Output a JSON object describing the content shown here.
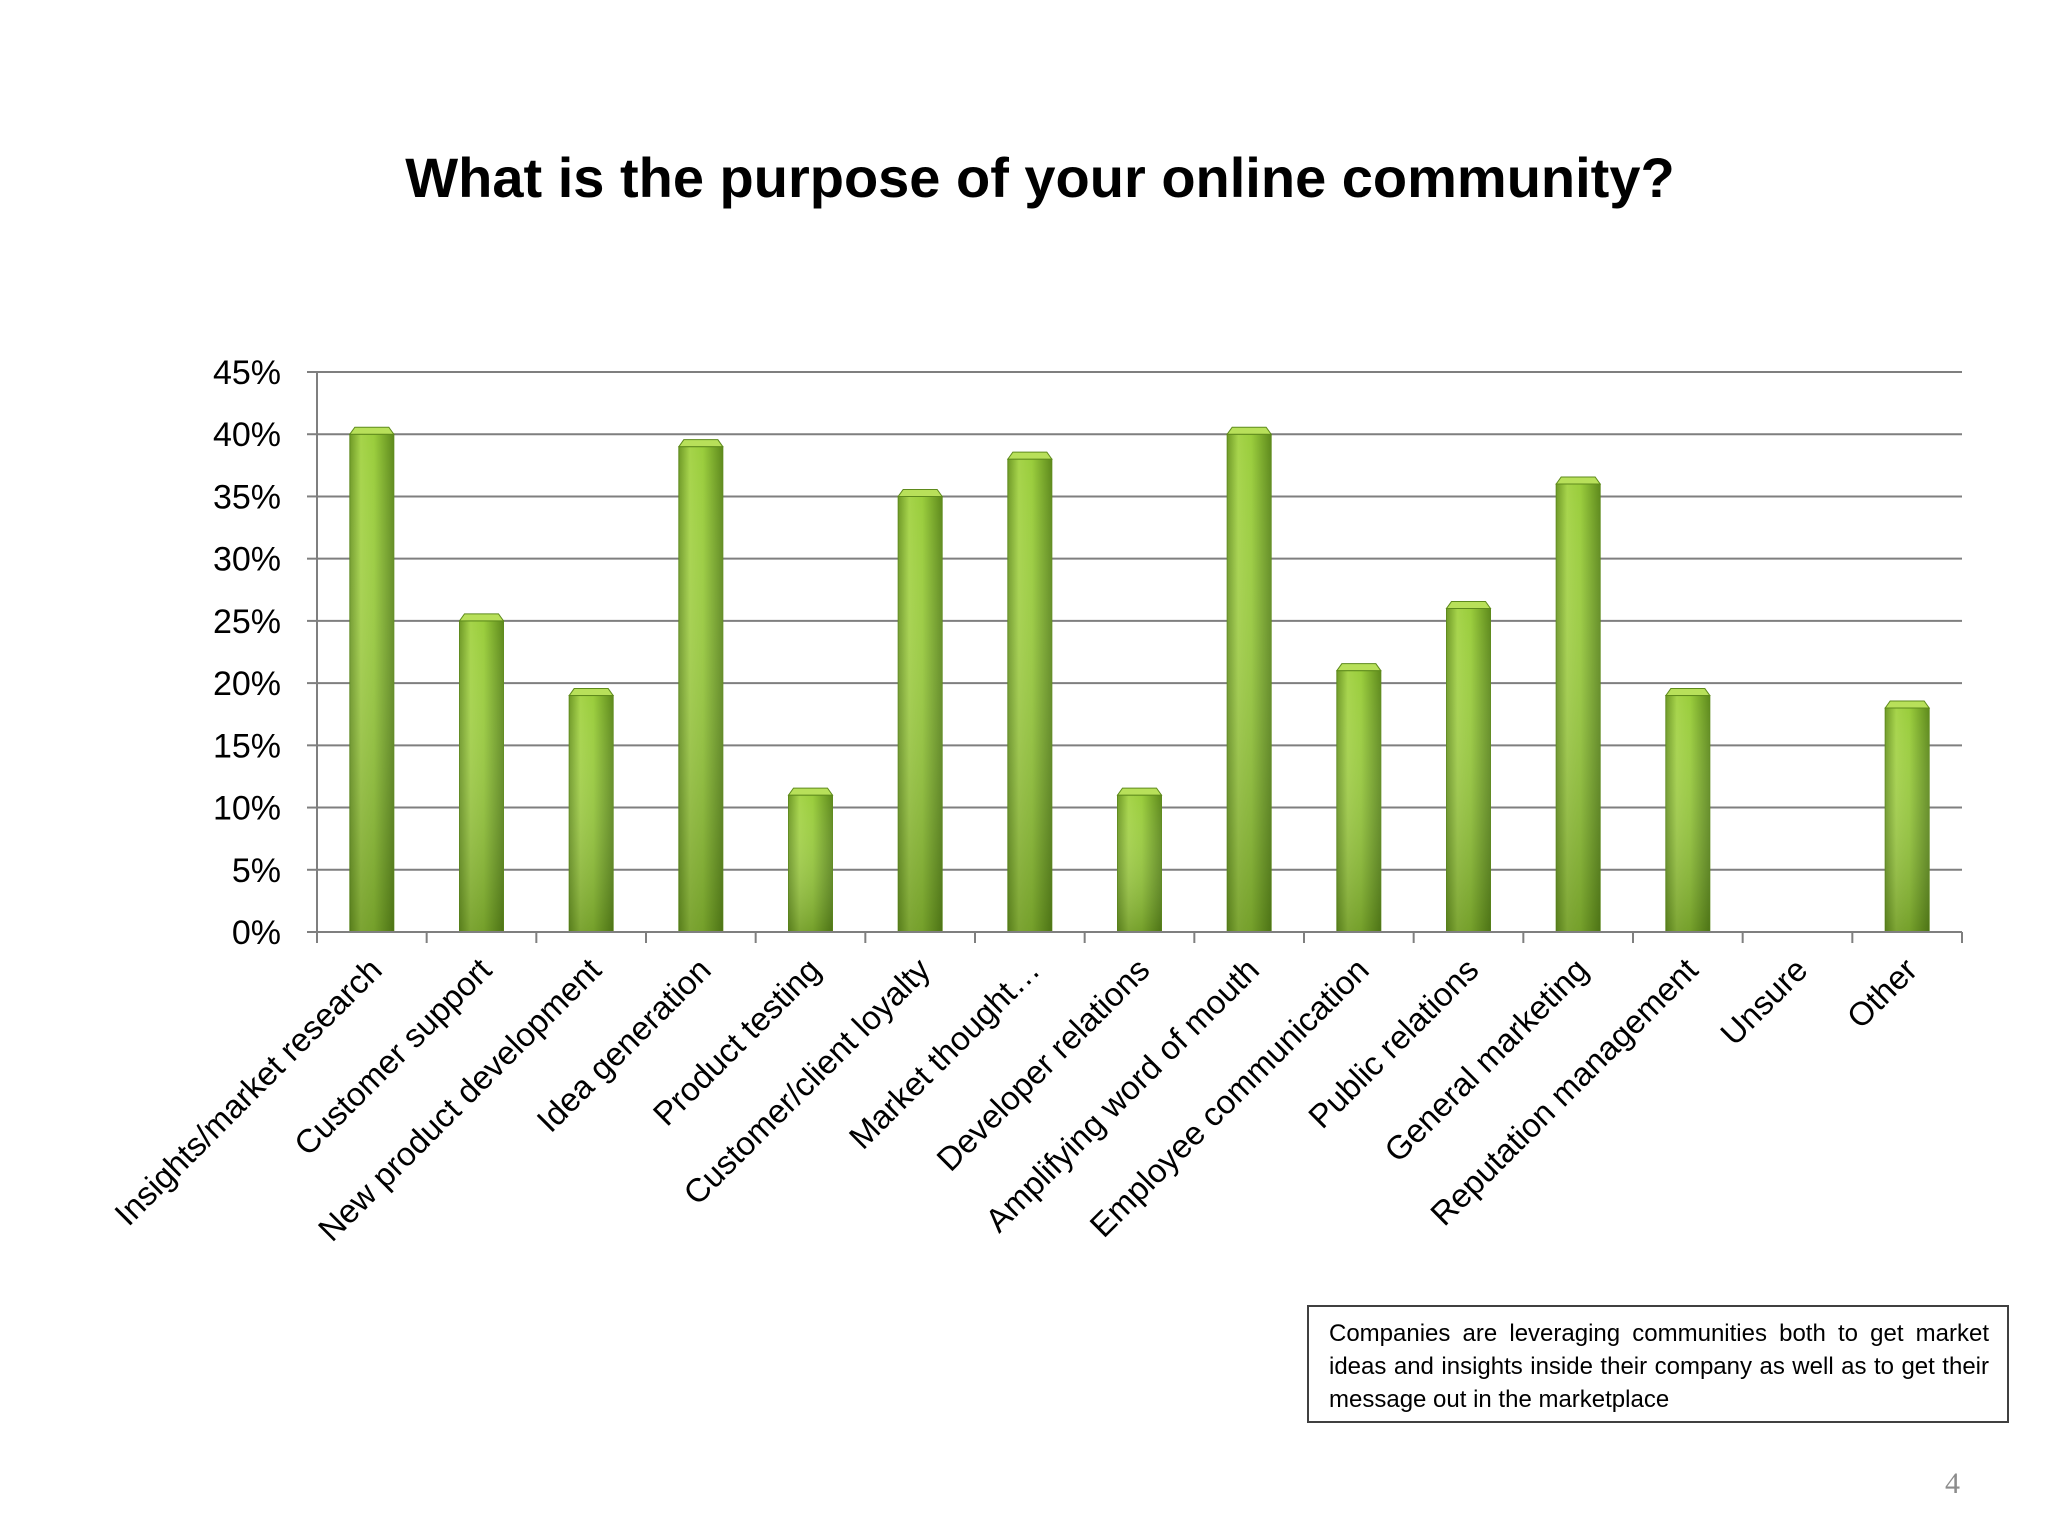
{
  "slide": {
    "title": "What is the purpose of your online community?",
    "note": "Companies are leveraging communities both to get market ideas and insights inside their company as well as to get their message out in the marketplace",
    "page_number": "4"
  },
  "colors": {
    "bar_fill": "#9acd3c",
    "bar_dark": "#5e8a1c",
    "bar_light": "#b8e05a",
    "grid": "#7f7f7f",
    "axis": "#7f7f7f"
  },
  "chart_data": {
    "type": "bar",
    "title": "What is the purpose of your online community?",
    "categories": [
      "Insights/market research",
      "Customer support",
      "New product development",
      "Idea generation",
      "Product testing",
      "Customer/client loyalty",
      "Market thought…",
      "Developer relations",
      "Amplifying word of mouth",
      "Employee communication",
      "Public relations",
      "General marketing",
      "Reputation management",
      "Unsure",
      "Other"
    ],
    "values": [
      40,
      25,
      19,
      39,
      11,
      35,
      38,
      11,
      40,
      21,
      26,
      36,
      19,
      0,
      18
    ],
    "y_ticks": [
      "0%",
      "5%",
      "10%",
      "15%",
      "20%",
      "25%",
      "30%",
      "35%",
      "40%",
      "45%"
    ],
    "ylim": [
      0,
      45
    ],
    "y_unit": "%",
    "grid": true,
    "legend": "none",
    "xlabel": "",
    "ylabel": ""
  }
}
